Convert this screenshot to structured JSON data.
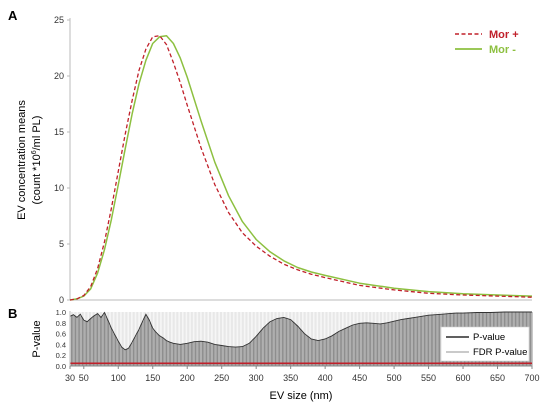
{
  "chart_data": [
    {
      "panel": "A",
      "type": "line",
      "ylabel": "EV concentration means",
      "ylabel_line2_prefix": "(count *10",
      "ylabel_line2_sup": "6",
      "ylabel_line2_suffix": "/ml PL)",
      "ylim": [
        0,
        25
      ],
      "yticks": [
        0,
        5,
        10,
        15,
        20,
        25
      ],
      "grid": false,
      "legend_position": "top-right",
      "x": [
        30,
        40,
        50,
        60,
        70,
        80,
        90,
        100,
        110,
        120,
        130,
        140,
        150,
        160,
        170,
        180,
        190,
        200,
        220,
        240,
        260,
        280,
        300,
        320,
        340,
        360,
        380,
        400,
        450,
        500,
        550,
        600,
        650,
        700
      ],
      "series": [
        {
          "name": "Mor +",
          "color": "#c0202a",
          "dash": "dashed",
          "values": [
            0.0,
            0.1,
            0.4,
            1.2,
            2.8,
            5.2,
            8.2,
            11.5,
            14.8,
            17.8,
            20.5,
            22.4,
            23.5,
            23.6,
            22.8,
            21.2,
            19.4,
            17.4,
            13.6,
            10.3,
            7.8,
            6.0,
            4.8,
            3.9,
            3.2,
            2.7,
            2.3,
            2.0,
            1.3,
            0.9,
            0.6,
            0.45,
            0.35,
            0.25
          ]
        },
        {
          "name": "Mor -",
          "color": "#8dc040",
          "dash": "solid",
          "values": [
            0.0,
            0.1,
            0.35,
            1.0,
            2.4,
            4.5,
            7.2,
            10.3,
            13.5,
            16.6,
            19.3,
            21.4,
            22.9,
            23.5,
            23.6,
            22.9,
            21.6,
            19.9,
            16.0,
            12.3,
            9.3,
            7.0,
            5.4,
            4.3,
            3.5,
            2.9,
            2.5,
            2.2,
            1.5,
            1.05,
            0.75,
            0.55,
            0.45,
            0.35
          ]
        }
      ]
    },
    {
      "panel": "B",
      "type": "area",
      "xlabel": "EV size (nm)",
      "ylabel": "P-value",
      "xlim": [
        30,
        700
      ],
      "xticks": [
        30,
        50,
        100,
        150,
        200,
        250,
        300,
        350,
        400,
        450,
        500,
        550,
        600,
        650,
        700
      ],
      "ylim": [
        0,
        1
      ],
      "yticks": [
        "0.0",
        "0.2",
        "0.4",
        "0.6",
        "0.8",
        "1.0"
      ],
      "legend_position": "right",
      "series": [
        {
          "name": "P-value",
          "color": "#000000",
          "x": [
            30,
            35,
            40,
            45,
            50,
            55,
            60,
            65,
            70,
            75,
            80,
            85,
            90,
            95,
            100,
            105,
            110,
            115,
            120,
            125,
            130,
            135,
            140,
            145,
            150,
            155,
            160,
            165,
            170,
            175,
            180,
            190,
            200,
            210,
            220,
            230,
            240,
            250,
            260,
            270,
            280,
            290,
            300,
            310,
            320,
            330,
            340,
            350,
            360,
            370,
            380,
            390,
            400,
            410,
            420,
            430,
            440,
            450,
            460,
            470,
            480,
            490,
            500,
            510,
            520,
            530,
            540,
            550,
            560,
            570,
            580,
            590,
            600,
            620,
            640,
            660,
            680,
            700
          ],
          "values": [
            0.92,
            0.95,
            0.9,
            0.96,
            0.85,
            0.82,
            0.88,
            0.93,
            0.97,
            0.9,
            0.99,
            0.85,
            0.7,
            0.58,
            0.46,
            0.35,
            0.3,
            0.33,
            0.44,
            0.56,
            0.68,
            0.82,
            0.96,
            0.85,
            0.7,
            0.62,
            0.56,
            0.52,
            0.47,
            0.44,
            0.42,
            0.4,
            0.42,
            0.45,
            0.46,
            0.44,
            0.4,
            0.38,
            0.36,
            0.35,
            0.36,
            0.42,
            0.55,
            0.7,
            0.82,
            0.88,
            0.9,
            0.86,
            0.74,
            0.6,
            0.5,
            0.47,
            0.5,
            0.56,
            0.64,
            0.7,
            0.76,
            0.79,
            0.8,
            0.79,
            0.78,
            0.8,
            0.83,
            0.86,
            0.88,
            0.9,
            0.92,
            0.94,
            0.95,
            0.96,
            0.97,
            0.98,
            0.98,
            0.99,
            0.99,
            1.0,
            1.0,
            1.0
          ]
        },
        {
          "name": "FDR P-value",
          "color": "#c0202a",
          "value": 0.05
        }
      ]
    }
  ]
}
